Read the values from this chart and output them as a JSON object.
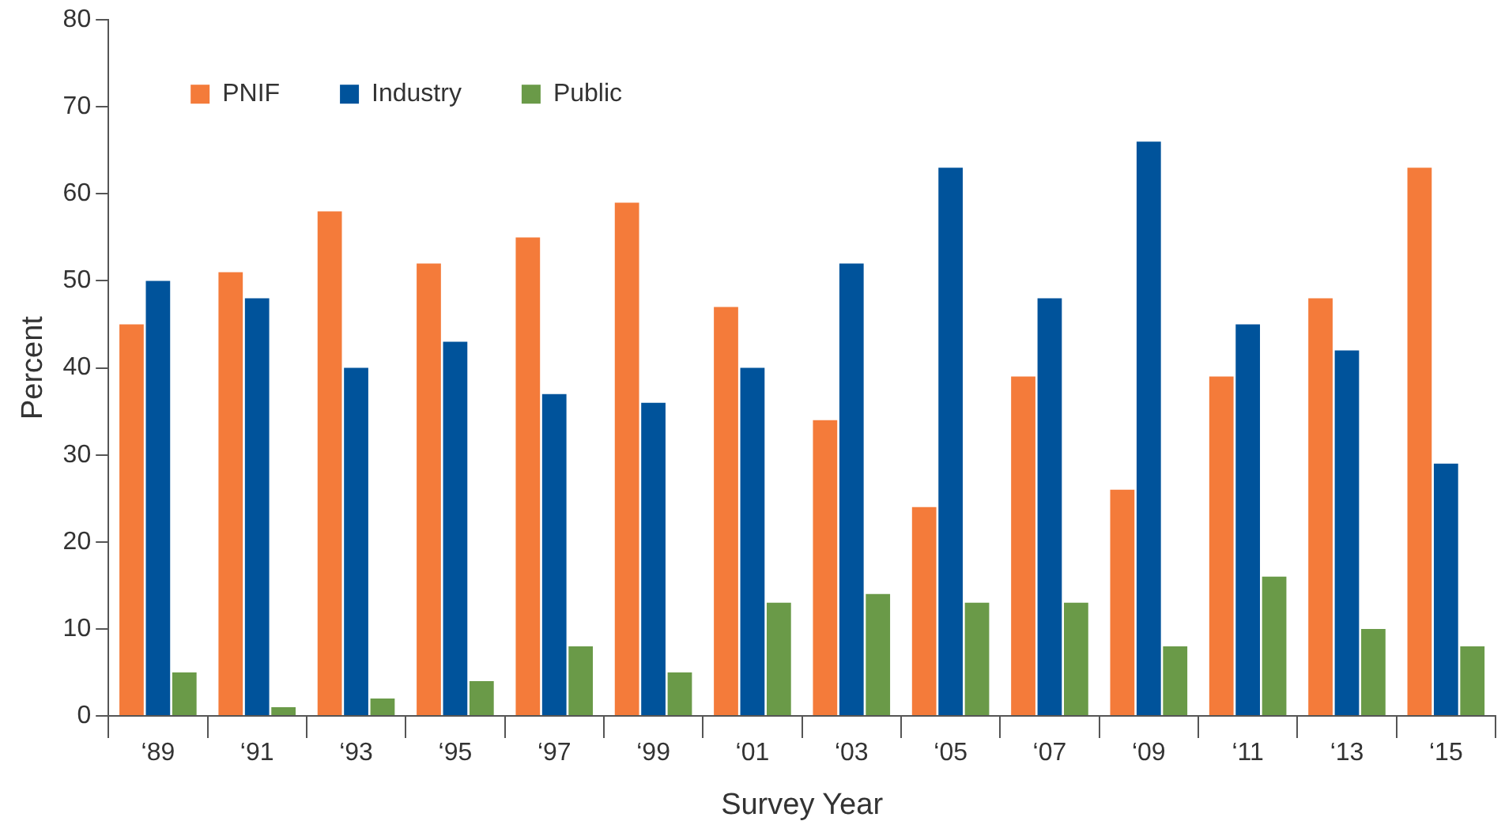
{
  "chart_data": {
    "type": "bar",
    "xlabel": "Survey Year",
    "ylabel": "Percent",
    "categories": [
      "‘89",
      "‘91",
      "‘93",
      "‘95",
      "‘97",
      "‘99",
      "‘01",
      "‘03",
      "‘05",
      "‘07",
      "‘09",
      "‘11",
      "‘13",
      "‘15"
    ],
    "series": [
      {
        "name": "PNIF",
        "color": "#f47b3a",
        "values": [
          45,
          51,
          58,
          52,
          55,
          59,
          47,
          34,
          24,
          39,
          26,
          39,
          48,
          63
        ]
      },
      {
        "name": "Industry",
        "color": "#00539b",
        "values": [
          50,
          48,
          40,
          43,
          37,
          36,
          40,
          52,
          63,
          48,
          66,
          45,
          42,
          29
        ]
      },
      {
        "name": "Public",
        "color": "#6a9a48",
        "values": [
          5,
          1,
          2,
          4,
          8,
          5,
          13,
          14,
          13,
          13,
          8,
          16,
          10,
          8
        ]
      }
    ],
    "ylim": [
      0,
      80
    ],
    "yticks": [
      0,
      10,
      20,
      30,
      40,
      50,
      60,
      70,
      80
    ],
    "grid": false,
    "legend": "top left"
  }
}
